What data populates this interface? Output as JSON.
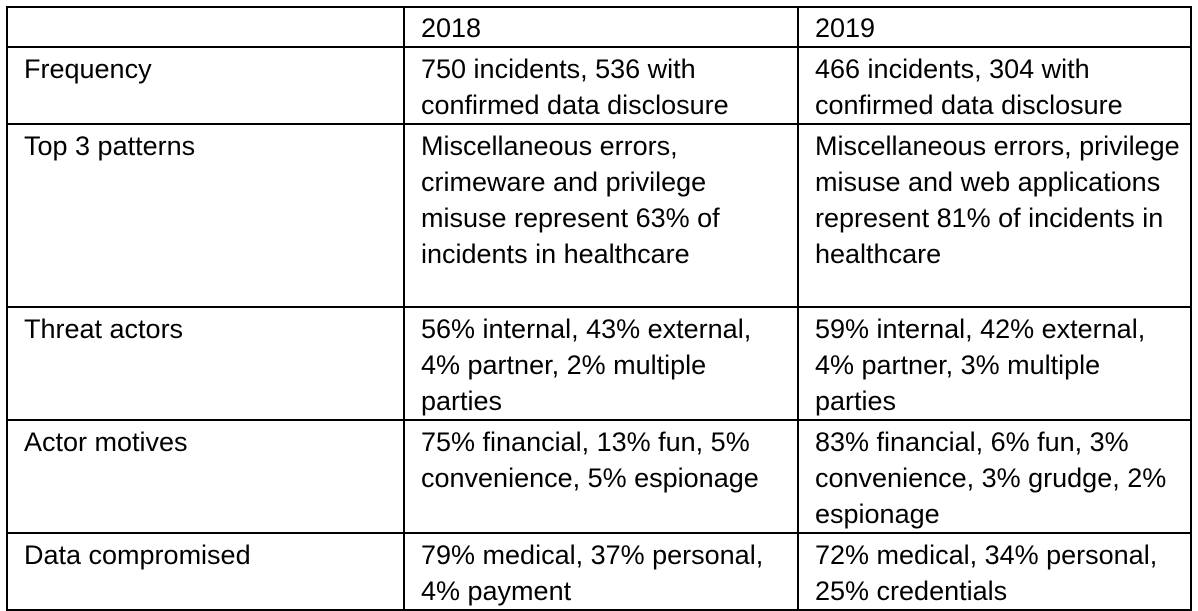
{
  "table": {
    "columns": [
      "2018",
      "2019"
    ],
    "rows": [
      [
        "Frequency",
        "750 incidents, 536 with confirmed data disclosure",
        "466 incidents, 304 with confirmed data disclosure"
      ],
      [
        "Top 3 patterns",
        "Miscellaneous errors, crimeware and privilege misuse represent 63% of incidents in healthcare",
        "Miscellaneous errors, privilege misuse and web applications represent 81% of incidents in healthcare"
      ],
      [
        "Threat actors",
        "56% internal, 43% external, 4% partner, 2% multiple parties",
        "59% internal, 42% external, 4% partner, 3% multiple parties"
      ],
      [
        "Actor motives",
        "75% financial, 13% fun, 5% convenience, 5% espionage",
        "83% financial, 6% fun, 3% convenience, 3% grudge, 2% espionage"
      ],
      [
        "Data compromised",
        "79% medical, 37% personal, 4% payment",
        "72% medical, 34% personal, 25% credentials"
      ]
    ]
  }
}
